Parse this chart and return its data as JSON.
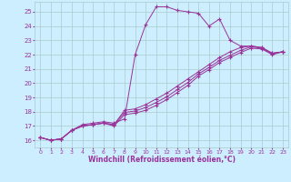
{
  "xlabel": "Windchill (Refroidissement éolien,°C)",
  "bg_color": "#cceeff",
  "grid_color": "#aacccc",
  "line_color": "#993399",
  "xlim": [
    -0.5,
    23.5
  ],
  "ylim": [
    15.5,
    25.7
  ],
  "xticks": [
    0,
    1,
    2,
    3,
    4,
    5,
    6,
    7,
    8,
    9,
    10,
    11,
    12,
    13,
    14,
    15,
    16,
    17,
    18,
    19,
    20,
    21,
    22,
    23
  ],
  "yticks": [
    16,
    17,
    18,
    19,
    20,
    21,
    22,
    23,
    24,
    25
  ],
  "series1": [
    [
      0,
      16.2
    ],
    [
      1,
      16.0
    ],
    [
      2,
      16.1
    ],
    [
      3,
      16.7
    ],
    [
      4,
      17.1
    ],
    [
      5,
      17.2
    ],
    [
      6,
      17.3
    ],
    [
      7,
      17.2
    ],
    [
      8,
      17.5
    ],
    [
      9,
      22.0
    ],
    [
      10,
      24.1
    ],
    [
      11,
      25.35
    ],
    [
      12,
      25.35
    ],
    [
      13,
      25.1
    ],
    [
      14,
      25.0
    ],
    [
      15,
      24.9
    ],
    [
      16,
      24.0
    ],
    [
      17,
      24.5
    ],
    [
      18,
      23.0
    ],
    [
      19,
      22.6
    ],
    [
      20,
      22.6
    ],
    [
      21,
      22.5
    ],
    [
      22,
      22.1
    ],
    [
      23,
      22.2
    ]
  ],
  "series2": [
    [
      0,
      16.2
    ],
    [
      1,
      16.0
    ],
    [
      2,
      16.1
    ],
    [
      3,
      16.7
    ],
    [
      4,
      17.0
    ],
    [
      5,
      17.1
    ],
    [
      6,
      17.2
    ],
    [
      7,
      17.1
    ],
    [
      8,
      18.1
    ],
    [
      9,
      18.2
    ],
    [
      10,
      18.5
    ],
    [
      11,
      18.9
    ],
    [
      12,
      19.3
    ],
    [
      13,
      19.8
    ],
    [
      14,
      20.3
    ],
    [
      15,
      20.8
    ],
    [
      16,
      21.3
    ],
    [
      17,
      21.8
    ],
    [
      18,
      22.2
    ],
    [
      19,
      22.5
    ],
    [
      20,
      22.6
    ],
    [
      21,
      22.5
    ],
    [
      22,
      22.1
    ],
    [
      23,
      22.2
    ]
  ],
  "series3": [
    [
      0,
      16.2
    ],
    [
      1,
      16.0
    ],
    [
      2,
      16.1
    ],
    [
      3,
      16.7
    ],
    [
      4,
      17.0
    ],
    [
      5,
      17.1
    ],
    [
      6,
      17.2
    ],
    [
      7,
      17.1
    ],
    [
      8,
      17.95
    ],
    [
      9,
      18.05
    ],
    [
      10,
      18.3
    ],
    [
      11,
      18.65
    ],
    [
      12,
      19.05
    ],
    [
      13,
      19.55
    ],
    [
      14,
      20.05
    ],
    [
      15,
      20.65
    ],
    [
      16,
      21.1
    ],
    [
      17,
      21.6
    ],
    [
      18,
      21.95
    ],
    [
      19,
      22.3
    ],
    [
      20,
      22.55
    ],
    [
      21,
      22.45
    ],
    [
      22,
      22.05
    ],
    [
      23,
      22.2
    ]
  ],
  "series4": [
    [
      0,
      16.2
    ],
    [
      1,
      16.0
    ],
    [
      2,
      16.1
    ],
    [
      3,
      16.7
    ],
    [
      4,
      17.0
    ],
    [
      5,
      17.1
    ],
    [
      6,
      17.2
    ],
    [
      7,
      17.0
    ],
    [
      8,
      17.8
    ],
    [
      9,
      17.9
    ],
    [
      10,
      18.1
    ],
    [
      11,
      18.45
    ],
    [
      12,
      18.85
    ],
    [
      13,
      19.35
    ],
    [
      14,
      19.85
    ],
    [
      15,
      20.5
    ],
    [
      16,
      20.95
    ],
    [
      17,
      21.45
    ],
    [
      18,
      21.8
    ],
    [
      19,
      22.15
    ],
    [
      20,
      22.45
    ],
    [
      21,
      22.4
    ],
    [
      22,
      22.0
    ],
    [
      23,
      22.2
    ]
  ]
}
